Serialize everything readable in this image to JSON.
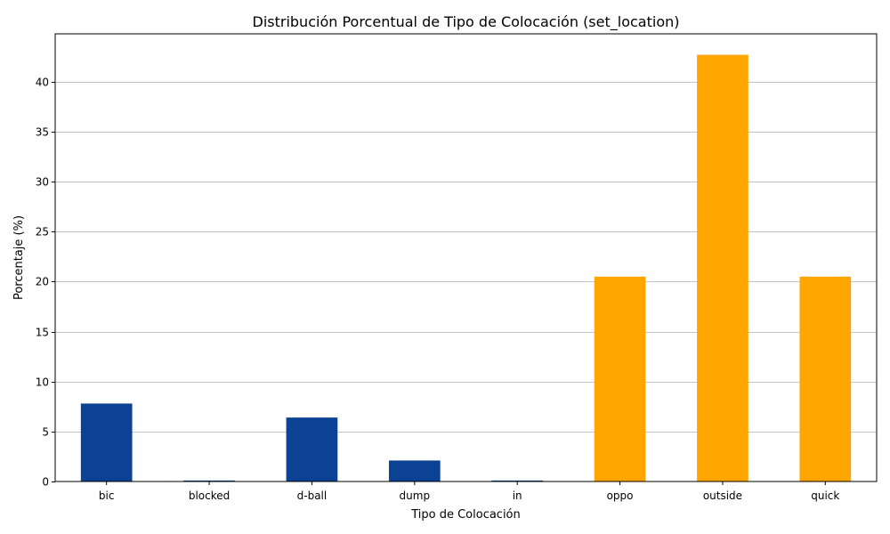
{
  "chart_data": {
    "type": "bar",
    "title": "Distribución Porcentual de Tipo de Colocación (set_location)",
    "xlabel": "Tipo de Colocación",
    "ylabel": "Porcentaje (%)",
    "categories": [
      "bic",
      "blocked",
      "d-ball",
      "dump",
      "in",
      "oppo",
      "outside",
      "quick"
    ],
    "values": [
      7.8,
      0.1,
      6.4,
      2.1,
      0.1,
      20.5,
      42.7,
      20.5
    ],
    "bar_colors": [
      "#0b4293",
      "#0b4293",
      "#0b4293",
      "#0b4293",
      "#0b4293",
      "#ffa500",
      "#ffa500",
      "#ffa500"
    ],
    "ylim": [
      0,
      44.8
    ],
    "yticks": [
      0,
      5,
      10,
      15,
      20,
      25,
      30,
      35,
      40
    ],
    "grid": "y",
    "legend": "none"
  }
}
